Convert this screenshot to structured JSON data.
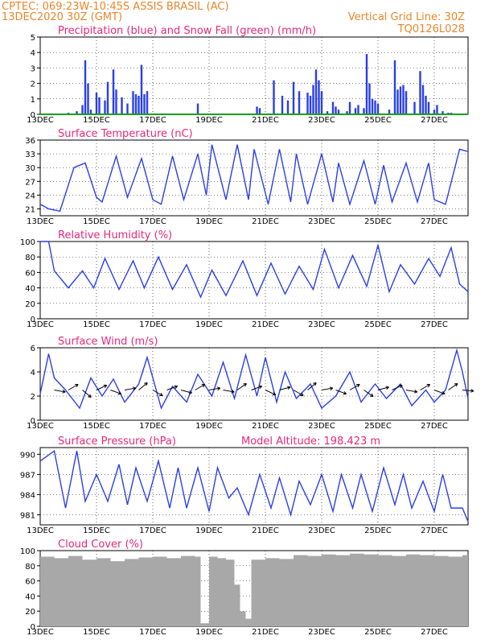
{
  "header": {
    "line1": "CPTEC:   069:23W-10:45S   ASSIS BRASIL (AC)",
    "line2": "13DEC2020 30Z (GMT)",
    "grid_note": "Vertical Grid Line: 30Z",
    "model_code": "TQ0126L028"
  },
  "colors": {
    "header": "#e8862a",
    "title": "#e8287a",
    "series": "#2a3fe8",
    "snow": "#1aa01a",
    "cloud": "#a8a8a8"
  },
  "x_tick_labels": [
    "13DEC",
    "15DEC",
    "17DEC",
    "19DEC",
    "21DEC",
    "23DEC",
    "25DEC",
    "27DEC"
  ],
  "x_range_days": [
    13,
    28.2
  ],
  "chart_data": [
    {
      "type": "bar",
      "title": "Precipitation (blue) and Snow Fall (green) (mm/h)",
      "ylim": [
        0,
        5
      ],
      "yticks": [
        "0",
        "1",
        "2",
        "3",
        "4",
        "5"
      ],
      "series": [
        {
          "name": "Precipitation",
          "x": [
            13.3,
            13.6,
            14.0,
            14.3,
            14.5,
            14.6,
            14.7,
            14.8,
            15.0,
            15.1,
            15.3,
            15.4,
            15.6,
            15.7,
            15.9,
            16.1,
            16.3,
            16.4,
            16.5,
            16.6,
            16.7,
            16.8,
            18.6,
            20.7,
            20.8,
            21.3,
            21.6,
            21.8,
            22.0,
            22.2,
            22.5,
            22.6,
            22.7,
            22.8,
            22.9,
            23.0,
            23.2,
            23.4,
            23.5,
            23.6,
            23.9,
            24.0,
            24.2,
            24.3,
            24.5,
            24.6,
            24.7,
            24.8,
            24.9,
            25.0,
            25.4,
            25.6,
            25.7,
            25.8,
            25.9,
            26.0,
            26.3,
            26.5,
            26.6,
            26.7,
            26.8,
            27.0,
            27.1,
            27.3,
            27.5,
            27.6,
            27.8,
            28.0
          ],
          "values": [
            0.05,
            0.05,
            0.1,
            0.2,
            0.6,
            3.5,
            2.0,
            0.3,
            1.4,
            1.1,
            0.9,
            2.1,
            2.9,
            1.6,
            1.1,
            0.7,
            1.5,
            1.3,
            1.2,
            3.2,
            1.3,
            1.5,
            0.7,
            0.5,
            0.4,
            2.2,
            1.2,
            0.9,
            2.1,
            1.5,
            1.4,
            1.2,
            1.9,
            2.9,
            2.2,
            1.5,
            0.2,
            0.8,
            0.5,
            0.3,
            0.2,
            0.8,
            0.4,
            0.6,
            0.4,
            3.9,
            2.0,
            1.0,
            0.9,
            0.7,
            0.3,
            3.5,
            1.6,
            1.8,
            1.9,
            1.5,
            0.8,
            2.8,
            1.9,
            1.2,
            0.8,
            0.3,
            0.6,
            0.2,
            0.1,
            0.1,
            0.05,
            0.05
          ]
        },
        {
          "name": "Snow Fall",
          "x": [
            13.0,
            28.2
          ],
          "values": [
            0,
            0
          ]
        }
      ]
    },
    {
      "type": "line",
      "title": "Surface Temperature (nC)",
      "ylim": [
        19.5,
        36
      ],
      "yticks": [
        "21",
        "24",
        "27",
        "30",
        "33",
        "36"
      ],
      "x": [
        13.0,
        13.3,
        13.7,
        14.2,
        14.6,
        15.0,
        15.2,
        15.7,
        16.1,
        16.6,
        17.0,
        17.3,
        17.7,
        18.1,
        18.6,
        18.9,
        19.1,
        19.6,
        20.0,
        20.4,
        20.6,
        21.1,
        21.5,
        21.9,
        22.1,
        22.5,
        23.0,
        23.4,
        23.6,
        24.0,
        24.5,
        24.9,
        25.2,
        25.5,
        26.0,
        26.4,
        26.8,
        27.0,
        27.4,
        27.9,
        28.2
      ],
      "values": [
        22,
        21,
        20.5,
        30,
        31,
        23.5,
        22.5,
        32.5,
        23.5,
        32,
        23,
        22,
        32.5,
        23,
        33,
        24,
        35,
        23,
        35,
        23,
        34,
        22,
        34,
        22.5,
        33,
        22,
        33,
        22.5,
        31,
        22,
        31.5,
        22,
        30.5,
        22.5,
        31,
        22.5,
        31,
        23,
        22,
        34,
        33.5
      ]
    },
    {
      "type": "line",
      "title": "Relative Humidity (%)",
      "ylim": [
        0,
        100
      ],
      "yticks": [
        "0",
        "20",
        "40",
        "60",
        "80",
        "100"
      ],
      "x": [
        13.0,
        13.3,
        13.5,
        14.0,
        14.5,
        14.9,
        15.3,
        15.8,
        16.3,
        16.7,
        17.2,
        17.7,
        18.2,
        18.7,
        19.1,
        19.6,
        20.2,
        20.7,
        21.2,
        21.7,
        22.2,
        22.7,
        23.1,
        23.6,
        24.1,
        24.6,
        25.0,
        25.4,
        25.8,
        26.3,
        26.8,
        27.2,
        27.6,
        27.9,
        28.2
      ],
      "values": [
        100,
        100,
        62,
        40,
        62,
        40,
        78,
        38,
        75,
        40,
        80,
        38,
        70,
        28,
        63,
        30,
        75,
        30,
        72,
        32,
        68,
        38,
        90,
        40,
        82,
        42,
        95,
        35,
        70,
        45,
        78,
        55,
        92,
        45,
        35
      ]
    },
    {
      "type": "line",
      "title": "Surface Wind (m/s)",
      "ylim": [
        0,
        6
      ],
      "yticks": [
        "0",
        "2",
        "4",
        "6"
      ],
      "x": [
        13.0,
        13.3,
        13.5,
        13.9,
        14.4,
        14.8,
        15.2,
        15.6,
        16.0,
        16.5,
        16.8,
        17.3,
        17.7,
        18.2,
        18.6,
        19.1,
        19.5,
        19.9,
        20.3,
        20.7,
        21.0,
        21.4,
        21.7,
        22.1,
        22.6,
        23.0,
        23.5,
        24.0,
        24.4,
        24.9,
        25.3,
        25.8,
        26.2,
        26.7,
        27.0,
        27.4,
        27.8,
        28.0,
        28.2
      ],
      "values": [
        2.2,
        5.5,
        3.5,
        2.5,
        1,
        3.5,
        2,
        3.4,
        1.5,
        3,
        5.2,
        1,
        2.8,
        1.5,
        3.8,
        2,
        4.8,
        1.8,
        5.4,
        2,
        5.2,
        1.5,
        4,
        1.8,
        3,
        1,
        2,
        4,
        1.5,
        3,
        1.8,
        3,
        1.2,
        2.5,
        1.5,
        2.5,
        5.8,
        4,
        1.8
      ],
      "vectors_at": [
        13.5,
        14.0,
        14.5,
        15.0,
        15.5,
        16.0,
        16.5,
        17.0,
        17.5,
        18.0,
        18.5,
        19.0,
        19.5,
        20.0,
        20.5,
        21.0,
        21.5,
        22.0,
        22.5,
        23.0,
        23.5,
        24.0,
        24.5,
        25.0,
        25.5,
        26.0,
        26.5,
        27.0,
        27.5,
        28.0
      ],
      "vector_direction_deg": [
        -10,
        30,
        -40,
        25,
        -20,
        10,
        40,
        -30,
        20,
        -15,
        30,
        10,
        -10,
        35,
        20,
        -25,
        15,
        -30,
        40,
        10,
        -20,
        30,
        -35,
        15,
        25,
        -10,
        30,
        -20,
        35,
        -5
      ]
    },
    {
      "type": "line",
      "title": "Surface Pressure (hPa)",
      "annotation": "Model Altitude: 198.423 m",
      "ylim": [
        979.5,
        991
      ],
      "yticks": [
        "981",
        "984",
        "987",
        "990"
      ],
      "x": [
        13.0,
        13.5,
        13.9,
        14.3,
        14.6,
        15.0,
        15.4,
        15.8,
        16.1,
        16.4,
        16.8,
        17.2,
        17.6,
        17.9,
        18.2,
        18.6,
        19.0,
        19.3,
        19.7,
        20.0,
        20.4,
        20.8,
        21.2,
        21.5,
        21.9,
        22.2,
        22.6,
        23.0,
        23.4,
        23.7,
        24.1,
        24.4,
        24.8,
        25.2,
        25.6,
        25.9,
        26.2,
        26.6,
        27.0,
        27.3,
        27.6,
        28.0,
        28.2
      ],
      "values": [
        989,
        990.5,
        982,
        990.5,
        983,
        987,
        983,
        988.5,
        982.5,
        988,
        983,
        989,
        982,
        988,
        982,
        988,
        981.5,
        988,
        983.5,
        985,
        981,
        987,
        982,
        986.5,
        981,
        986,
        982.5,
        987,
        981.5,
        987,
        982,
        987,
        981.5,
        988,
        982.5,
        987,
        982,
        986,
        981.5,
        987,
        982,
        982,
        980
      ]
    },
    {
      "type": "bar",
      "title": "Cloud Cover (%)",
      "ylim": [
        0,
        100
      ],
      "yticks": [
        "0",
        "20",
        "40",
        "60",
        "80",
        "100"
      ],
      "x": [
        13.0,
        13.5,
        14.0,
        14.5,
        15.0,
        15.5,
        16.0,
        16.5,
        17.0,
        17.5,
        18.0,
        18.5,
        18.7,
        19.0,
        19.3,
        19.6,
        19.9,
        20.1,
        20.3,
        20.5,
        21.0,
        21.5,
        22.0,
        22.5,
        23.0,
        23.5,
        24.0,
        24.5,
        25.0,
        25.5,
        26.0,
        26.5,
        27.0,
        27.5,
        28.0
      ],
      "values": [
        92,
        90,
        93,
        88,
        90,
        86,
        89,
        91,
        92,
        90,
        93,
        92,
        4,
        92,
        90,
        88,
        55,
        20,
        10,
        88,
        90,
        89,
        94,
        93,
        95,
        94,
        96,
        95,
        94,
        93,
        95,
        94,
        93,
        92,
        94
      ]
    }
  ]
}
